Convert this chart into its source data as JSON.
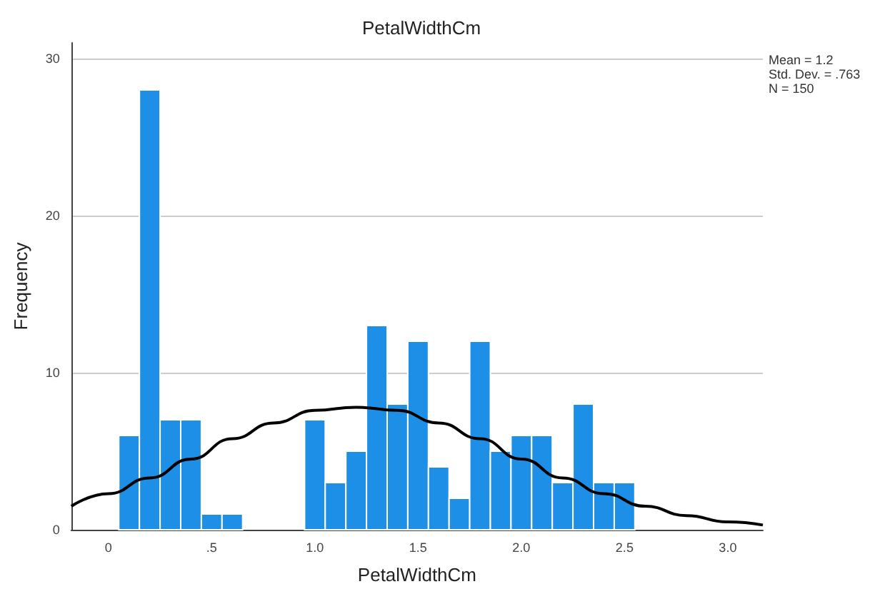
{
  "chart_data": {
    "type": "histogram",
    "title": "PetalWidthCm",
    "xlabel": "PetalWidthCm",
    "ylabel": "Frequency",
    "annotations": [
      "Mean = 1.2",
      "Std. Dev. = .763",
      "N = 150"
    ],
    "bins": [
      0.05,
      0.15,
      0.25,
      0.35,
      0.45,
      0.55,
      0.65,
      0.75,
      0.85,
      0.95,
      1.05,
      1.15,
      1.25,
      1.35,
      1.45,
      1.55,
      1.65,
      1.75,
      1.85,
      1.95,
      2.05,
      2.15,
      2.25,
      2.35,
      2.45,
      2.55
    ],
    "values": [
      6,
      28,
      7,
      7,
      1,
      1,
      0,
      0,
      0,
      7,
      3,
      5,
      13,
      8,
      12,
      4,
      2,
      12,
      5,
      6,
      6,
      3,
      8,
      3,
      3
    ],
    "color": "#1e8fe6",
    "series": [
      {
        "type": "line",
        "color": "#000000",
        "marker": "none",
        "x": [
          -0.18,
          0,
          0.2,
          0.4,
          0.6,
          0.8,
          1,
          1.2,
          1.4,
          1.6,
          1.8,
          2,
          2.2,
          2.4,
          2.6,
          2.8,
          3,
          3.17
        ],
        "values": [
          1.5,
          2.3,
          3.3,
          4.5,
          5.8,
          6.8,
          7.6,
          7.8,
          7.6,
          6.8,
          5.8,
          4.5,
          3.3,
          2.3,
          1.5,
          0.9,
          0.5,
          0.3
        ]
      }
    ],
    "xlim": [
      -0.18,
      3.17
    ],
    "xticks": [
      {
        "value": 0,
        "label": "0"
      },
      {
        "value": 0.5,
        "label": ".5"
      },
      {
        "value": 1,
        "label": "1.0"
      },
      {
        "value": 1.5,
        "label": "1.5"
      },
      {
        "value": 2,
        "label": "2.0"
      },
      {
        "value": 2.5,
        "label": "2.5"
      },
      {
        "value": 3,
        "label": "3.0"
      }
    ],
    "ylim": [
      0,
      31
    ],
    "yticks": [
      0,
      10,
      20,
      30
    ],
    "grid": "y"
  }
}
